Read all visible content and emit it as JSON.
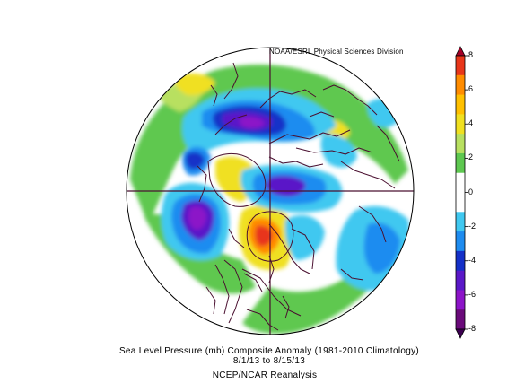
{
  "map": {
    "credit": "NOAA/ESRL Physical Sciences Division",
    "title": "Sea Level Pressure (mb) Composite Anomaly (1981-2010 Climatology)",
    "date_range": "8/1/13  to 8/15/13",
    "source": "NCEP/NCAR Reanalysis",
    "projection": "north-polar-stereographic",
    "coastline_color": "#4a1030"
  },
  "colorbar": {
    "ticks": [
      "8",
      "6",
      "4",
      "2",
      "0",
      "-2",
      "-4",
      "-6",
      "-8"
    ],
    "colors": [
      "#a50026",
      "#e8361a",
      "#ff8c00",
      "#ffc000",
      "#f0e020",
      "#b8e060",
      "#5ec850",
      "#ffffff",
      "#ffffff",
      "#40c8f0",
      "#1e8cf0",
      "#1430c8",
      "#5a18c8",
      "#8c14c8",
      "#6a0a7a",
      "#3c0050"
    ]
  }
}
